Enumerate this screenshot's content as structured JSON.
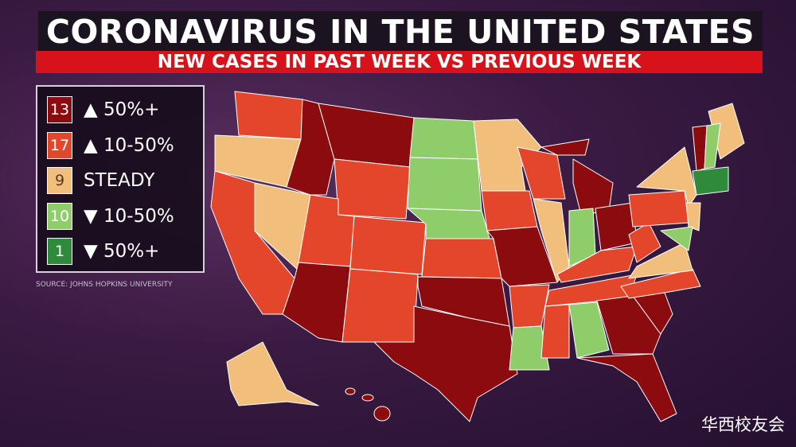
{
  "header": {
    "title": "CORONAVIRUS IN THE UNITED STATES",
    "subtitle": "NEW CASES IN PAST WEEK VS PREVIOUS WEEK"
  },
  "legend": {
    "items": [
      {
        "count": 13,
        "label": "▲ 50%+",
        "color": "#8c0b0e"
      },
      {
        "count": 17,
        "label": "▲ 10-50%",
        "color": "#e3462b"
      },
      {
        "count": 9,
        "label": "STEADY",
        "color": "#f2be7c"
      },
      {
        "count": 10,
        "label": "▼ 10-50%",
        "color": "#8fcd6a"
      },
      {
        "count": 1,
        "label": "▼ 50%+",
        "color": "#2f8a3b"
      }
    ]
  },
  "source": "SOURCE: JOHNS HOPKINS UNIVERSITY",
  "watermark": "华西校友会"
}
